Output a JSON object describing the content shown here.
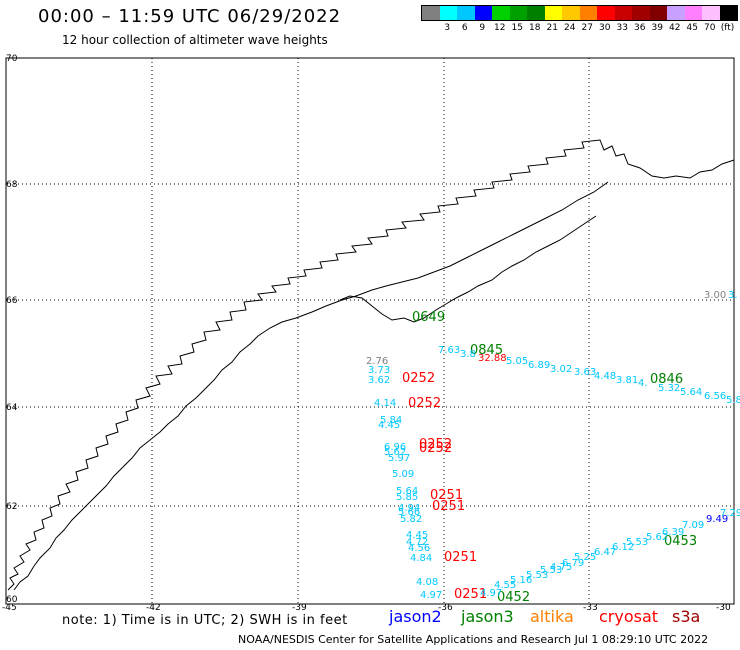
{
  "title": "00:00 – 11:59 UTC 06/29/2022",
  "subtitle": "12 hour collection of altimeter wave heights",
  "legend": {
    "colors": [
      "#808080",
      "#00ffff",
      "#00c8ff",
      "#0000ff",
      "#00d000",
      "#00a000",
      "#008000",
      "#ffff00",
      "#ffc800",
      "#ff8000",
      "#ff0000",
      "#c80000",
      "#a00000",
      "#800000",
      "#c8a0ff",
      "#ff80ff",
      "#ffc0ff",
      "#000000"
    ],
    "labels": [
      "3",
      "6",
      "9",
      "12",
      "15",
      "18",
      "21",
      "24",
      "27",
      "30",
      "33",
      "36",
      "39",
      "42",
      "45",
      "70"
    ],
    "unit": "(ft)"
  },
  "axes": {
    "lat_labels": [
      "70",
      "68",
      "66",
      "64",
      "62",
      "60"
    ],
    "lon_labels": [
      "-45",
      "-42",
      "-39",
      "-36",
      "-33",
      "-30"
    ]
  },
  "times": [
    {
      "text": "0649",
      "color": "#008000"
    },
    {
      "text": "0845",
      "color": "#008000"
    },
    {
      "text": "32.88",
      "color": "#ff0000"
    },
    {
      "text": "0252",
      "color": "#ff0000"
    },
    {
      "text": "0252",
      "color": "#ff0000"
    },
    {
      "text": "0252",
      "color": "#ff0000"
    },
    {
      "text": "0252",
      "color": "#ff0000"
    },
    {
      "text": "0251",
      "color": "#ff0000"
    },
    {
      "text": "0251",
      "color": "#ff0000"
    },
    {
      "text": "0251",
      "color": "#ff0000"
    },
    {
      "text": "0251",
      "color": "#ff0000"
    },
    {
      "text": "0846",
      "color": "#008000"
    },
    {
      "text": "0453",
      "color": "#008000"
    },
    {
      "text": "0452",
      "color": "#008000"
    }
  ],
  "heights": [
    {
      "text": "3.00",
      "color": "#808080"
    },
    {
      "text": "3.",
      "color": "#00c8ff"
    },
    {
      "text": "7.63",
      "color": "#00c8ff"
    },
    {
      "text": "3.8",
      "color": "#00c8ff"
    },
    {
      "text": "5.05",
      "color": "#00c8ff"
    },
    {
      "text": "6.89",
      "color": "#00c8ff"
    },
    {
      "text": "3.02",
      "color": "#00c8ff"
    },
    {
      "text": "3.63",
      "color": "#00c8ff"
    },
    {
      "text": "4.48",
      "color": "#00c8ff"
    },
    {
      "text": "3.81",
      "color": "#00c8ff"
    },
    {
      "text": "4.",
      "color": "#00c8ff"
    },
    {
      "text": "5.32",
      "color": "#00c8ff"
    },
    {
      "text": "5.64",
      "color": "#00c8ff"
    },
    {
      "text": "6.56",
      "color": "#00c8ff"
    },
    {
      "text": "5.8",
      "color": "#00c8ff"
    },
    {
      "text": "2.76",
      "color": "#808080"
    },
    {
      "text": "3.73",
      "color": "#00c8ff"
    },
    {
      "text": "3.62",
      "color": "#00c8ff"
    },
    {
      "text": "4.14",
      "color": "#00c8ff"
    },
    {
      "text": "5.84",
      "color": "#00c8ff"
    },
    {
      "text": "4.45",
      "color": "#00c8ff"
    },
    {
      "text": "6.96",
      "color": "#00c8ff"
    },
    {
      "text": "5.62",
      "color": "#00c8ff"
    },
    {
      "text": "5.97",
      "color": "#00c8ff"
    },
    {
      "text": "5.09",
      "color": "#00c8ff"
    },
    {
      "text": "5.64",
      "color": "#00c8ff"
    },
    {
      "text": "5.85",
      "color": "#00c8ff"
    },
    {
      "text": "4.94",
      "color": "#00c8ff"
    },
    {
      "text": "5.66",
      "color": "#00c8ff"
    },
    {
      "text": "5.82",
      "color": "#00c8ff"
    },
    {
      "text": "4.45",
      "color": "#00c8ff"
    },
    {
      "text": "4.72",
      "color": "#00c8ff"
    },
    {
      "text": "4.56",
      "color": "#00c8ff"
    },
    {
      "text": "4.84",
      "color": "#00c8ff"
    },
    {
      "text": "4.08",
      "color": "#00c8ff"
    },
    {
      "text": "4.97",
      "color": "#00c8ff"
    },
    {
      "text": "4.97",
      "color": "#00c8ff"
    },
    {
      "text": "4.55",
      "color": "#00c8ff"
    },
    {
      "text": "5.16",
      "color": "#00c8ff"
    },
    {
      "text": "5.53",
      "color": "#00c8ff"
    },
    {
      "text": "5.53",
      "color": "#00c8ff"
    },
    {
      "text": "4.75",
      "color": "#00c8ff"
    },
    {
      "text": "6.79",
      "color": "#00c8ff"
    },
    {
      "text": "5.25",
      "color": "#00c8ff"
    },
    {
      "text": "6.47",
      "color": "#00c8ff"
    },
    {
      "text": "6.12",
      "color": "#00c8ff"
    },
    {
      "text": "5.53",
      "color": "#00c8ff"
    },
    {
      "text": "5.62",
      "color": "#00c8ff"
    },
    {
      "text": "6.39",
      "color": "#00c8ff"
    },
    {
      "text": "7.09",
      "color": "#00c8ff"
    },
    {
      "text": "9.49",
      "color": "#0000ff"
    },
    {
      "text": "7.29",
      "color": "#00c8ff"
    }
  ],
  "note": "note: 1) Time is in UTC; 2) SWH is in feet",
  "satellites": [
    {
      "name": "jason2",
      "color": "#0000ff"
    },
    {
      "name": "jason3",
      "color": "#008000"
    },
    {
      "name": "altika",
      "color": "#ff8000"
    },
    {
      "name": "cryosat",
      "color": "#ff0000"
    },
    {
      "name": "s3a",
      "color": "#a00000"
    }
  ],
  "credit": "NOAA/NESDIS Center for Satellite Applications and Research   Jul  1 08:29:10 UTC 2022"
}
